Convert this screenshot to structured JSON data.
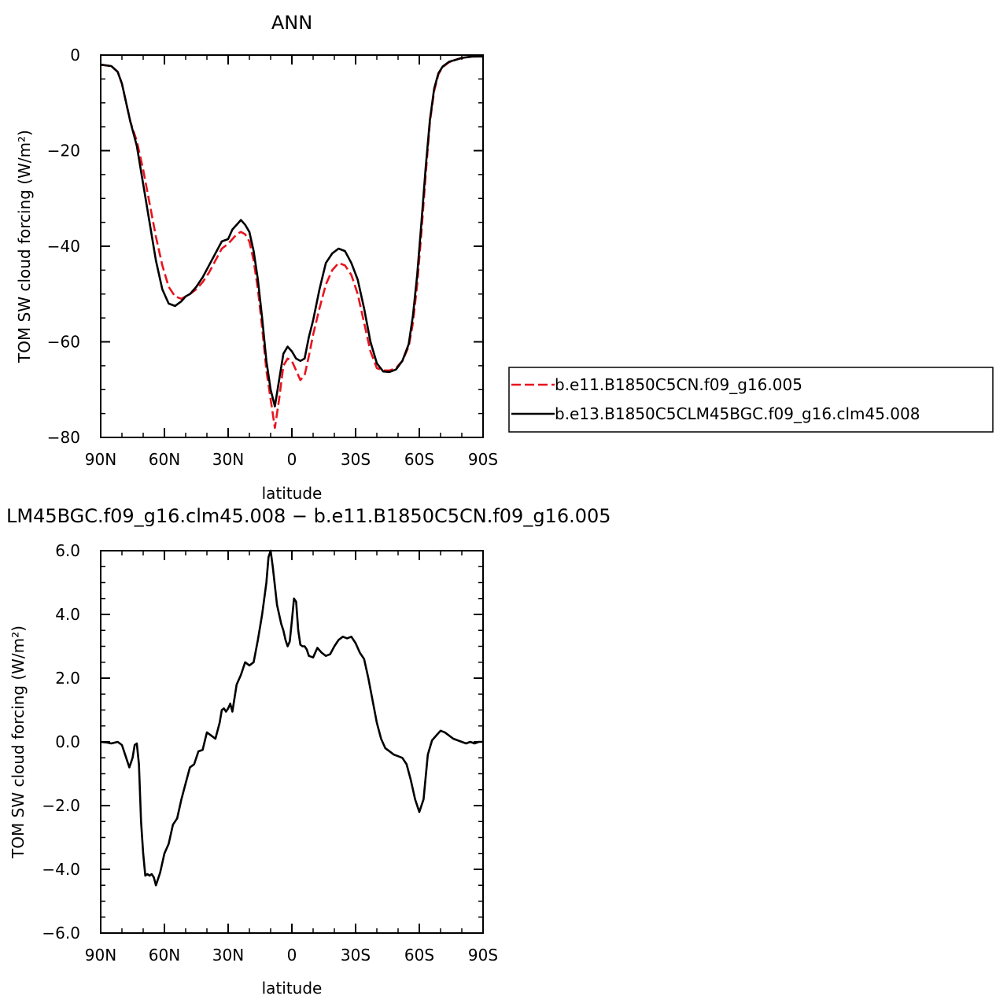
{
  "chart_data": [
    {
      "type": "line",
      "title": "ANN",
      "xlabel": "latitude",
      "ylabel": "TOM SW cloud forcing (W/m²)",
      "xlim": [
        90,
        -90
      ],
      "ylim": [
        -80,
        0
      ],
      "x_ticks": [
        90,
        60,
        30,
        0,
        -30,
        -60,
        -90
      ],
      "x_tick_labels": [
        "90N",
        "60N",
        "30N",
        "0",
        "30S",
        "60S",
        "90S"
      ],
      "y_ticks": [
        0,
        -20,
        -40,
        -60,
        -80
      ],
      "y_tick_labels": [
        "0",
        "−20",
        "−40",
        "−60",
        "−80"
      ],
      "legend_position": "right",
      "series": [
        {
          "name": "b.e11.B1850C5CN.f09_g16.005",
          "color": "#e8141e",
          "dash": "dashed",
          "x": [
            90,
            85,
            82,
            80,
            78,
            76,
            73,
            70,
            67,
            64,
            61,
            58,
            55,
            52,
            50,
            48,
            45,
            42,
            39,
            36,
            33,
            30,
            28,
            26,
            24,
            22,
            20,
            18,
            16,
            14,
            12,
            10,
            8,
            6,
            4,
            2,
            0,
            -2,
            -4,
            -6,
            -8,
            -10,
            -13,
            -16,
            -19,
            -22,
            -25,
            -28,
            -31,
            -34,
            -37,
            -40,
            -43,
            -46,
            -49,
            -52,
            -55,
            -57,
            -59,
            -61,
            -63,
            -65,
            -67,
            -69,
            -71,
            -74,
            -77,
            -80,
            -85,
            -90
          ],
          "y": [
            -2,
            -2.3,
            -3.5,
            -6,
            -10,
            -14,
            -18,
            -24,
            -31,
            -38,
            -44,
            -48.5,
            -50.5,
            -51,
            -50.5,
            -50,
            -49,
            -47.5,
            -45.5,
            -43,
            -40.5,
            -39.5,
            -38.5,
            -37.5,
            -37,
            -37.5,
            -39,
            -43,
            -49,
            -57,
            -66,
            -72,
            -78,
            -72,
            -65,
            -63.5,
            -64,
            -66,
            -68,
            -67,
            -63,
            -58.5,
            -53,
            -48,
            -45,
            -43.5,
            -44,
            -46,
            -50,
            -56,
            -62,
            -65.5,
            -66,
            -66,
            -65.5,
            -64,
            -61,
            -56,
            -48,
            -37,
            -25,
            -14,
            -7.5,
            -4,
            -2.5,
            -1.5,
            -1,
            -0.6,
            -0.3,
            -0.3
          ]
        },
        {
          "name": "b.e13.B1850C5CLM45BGC.f09_g16.clm45.008",
          "color": "#000000",
          "dash": "solid",
          "x": [
            90,
            85,
            82,
            80,
            78,
            76,
            73,
            70,
            67,
            64,
            61,
            58,
            55,
            52,
            50,
            48,
            45,
            42,
            39,
            36,
            33,
            30,
            28,
            26,
            24,
            22,
            20,
            18,
            16,
            14,
            12,
            10,
            8,
            6,
            4,
            2,
            0,
            -2,
            -4,
            -6,
            -8,
            -10,
            -13,
            -16,
            -19,
            -22,
            -25,
            -28,
            -31,
            -34,
            -37,
            -40,
            -43,
            -46,
            -49,
            -52,
            -55,
            -57,
            -59,
            -61,
            -63,
            -65,
            -67,
            -69,
            -71,
            -74,
            -77,
            -80,
            -85,
            -90
          ],
          "y": [
            -2,
            -2.3,
            -3.5,
            -6,
            -10,
            -14,
            -19,
            -27,
            -35,
            -43,
            -49,
            -52,
            -52.5,
            -51.5,
            -50.5,
            -50,
            -48.5,
            -46.5,
            -44,
            -41.5,
            -39,
            -38.5,
            -36.5,
            -35.5,
            -34.5,
            -35.5,
            -37,
            -41,
            -47,
            -55,
            -64,
            -70,
            -73.5,
            -68,
            -62.5,
            -61,
            -62,
            -63.5,
            -64,
            -63.5,
            -59,
            -55.5,
            -49,
            -43.5,
            -41.5,
            -40.5,
            -41,
            -43.5,
            -47,
            -53,
            -60,
            -64.5,
            -66.2,
            -66.3,
            -65.8,
            -64,
            -60.5,
            -54.5,
            -46,
            -35,
            -23.5,
            -13.5,
            -7,
            -3.8,
            -2.4,
            -1.4,
            -1,
            -0.6,
            -0.3,
            -0.3
          ]
        }
      ]
    },
    {
      "type": "line",
      "title": "LM45BGC.f09_g16.clm45.008 − b.e11.B1850C5CN.f09_g16.005",
      "xlabel": "latitude",
      "ylabel": "TOM SW cloud forcing (W/m²)",
      "xlim": [
        90,
        -90
      ],
      "ylim": [
        -6,
        6
      ],
      "x_ticks": [
        90,
        60,
        30,
        0,
        -30,
        -60,
        -90
      ],
      "x_tick_labels": [
        "90N",
        "60N",
        "30N",
        "0",
        "30S",
        "60S",
        "90S"
      ],
      "y_ticks": [
        6,
        4,
        2,
        0,
        -2,
        -4,
        -6
      ],
      "y_tick_labels": [
        "6.0",
        "4.0",
        "2.0",
        "0.0",
        "−2.0",
        "−4.0",
        "−6.0"
      ],
      "series": [
        {
          "color": "#000000",
          "dash": "solid",
          "x": [
            90,
            87,
            85,
            82,
            80,
            78,
            76.5,
            75,
            74,
            73,
            72,
            71,
            70,
            69,
            68,
            67,
            66,
            65,
            64,
            63,
            62,
            60,
            58,
            56,
            54,
            52,
            50,
            48,
            46,
            44,
            42,
            40,
            38,
            36,
            34,
            33,
            32,
            31,
            30,
            29,
            28,
            26,
            24,
            22,
            20,
            18,
            16,
            14,
            12,
            11,
            10,
            9,
            8,
            7,
            6,
            5,
            4,
            3,
            2,
            1,
            0,
            -1,
            -2,
            -3,
            -4,
            -5,
            -6,
            -7,
            -8,
            -10,
            -12,
            -14,
            -16,
            -18,
            -20,
            -22,
            -24,
            -26,
            -28,
            -30,
            -32,
            -34,
            -36,
            -38,
            -40,
            -42,
            -44,
            -46,
            -48,
            -50,
            -52,
            -54,
            -56,
            -58,
            -60,
            -62,
            -63,
            -64,
            -66,
            -68,
            -70,
            -72,
            -74,
            -76,
            -78,
            -80,
            -82,
            -84,
            -86,
            -88,
            -90
          ],
          "y": [
            0,
            -0.02,
            -0.05,
            0,
            -0.1,
            -0.5,
            -0.8,
            -0.5,
            -0.1,
            -0.05,
            -0.7,
            -2.5,
            -3.5,
            -4.2,
            -4.15,
            -4.2,
            -4.15,
            -4.25,
            -4.5,
            -4.3,
            -4.1,
            -3.5,
            -3.2,
            -2.6,
            -2.4,
            -1.8,
            -1.3,
            -0.8,
            -0.7,
            -0.3,
            -0.25,
            0.3,
            0.2,
            0.1,
            0.6,
            1.0,
            1.05,
            0.95,
            1.05,
            1.2,
            0.95,
            1.8,
            2.1,
            2.5,
            2.4,
            2.5,
            3.2,
            4.0,
            5.0,
            5.8,
            6.0,
            5.5,
            4.9,
            4.3,
            4.0,
            3.7,
            3.5,
            3.2,
            3.0,
            3.15,
            3.8,
            4.5,
            4.4,
            3.5,
            3.05,
            3.0,
            3.0,
            2.9,
            2.7,
            2.65,
            2.95,
            2.8,
            2.7,
            2.75,
            3.0,
            3.2,
            3.3,
            3.25,
            3.3,
            3.1,
            2.8,
            2.6,
            2.0,
            1.3,
            0.6,
            0.1,
            -0.2,
            -0.3,
            -0.4,
            -0.45,
            -0.5,
            -0.7,
            -1.2,
            -1.8,
            -2.2,
            -1.8,
            -1.1,
            -0.4,
            0.05,
            0.2,
            0.35,
            0.3,
            0.2,
            0.1,
            0.05,
            0,
            -0.05,
            0,
            -0.05,
            0,
            0
          ]
        }
      ]
    }
  ]
}
